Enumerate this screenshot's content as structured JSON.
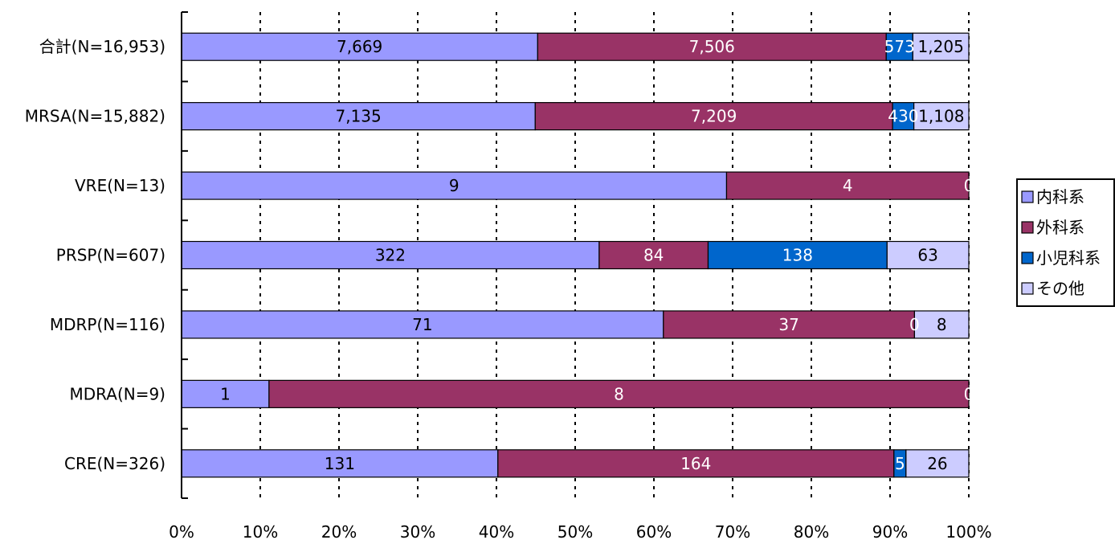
{
  "chart_data": {
    "type": "bar",
    "orientation": "horizontal",
    "stacking": "percent",
    "categories": [
      "合計(N=16,953)",
      "MRSA(N=15,882)",
      "VRE(N=13)",
      "PRSP(N=607)",
      "MDRP(N=116)",
      "MDRA(N=9)",
      "CRE(N=326)"
    ],
    "series": [
      {
        "name": "内科系",
        "values": [
          7669,
          7135,
          9,
          322,
          71,
          1,
          131
        ],
        "labels": [
          "7,669",
          "7,135",
          "9",
          "322",
          "71",
          "1",
          "131"
        ],
        "color": "#9999ff",
        "label_color": "#000000"
      },
      {
        "name": "外科系",
        "values": [
          7506,
          7209,
          4,
          84,
          37,
          8,
          164
        ],
        "labels": [
          "7,506",
          "7,209",
          "4",
          "84",
          "37",
          "8",
          "164"
        ],
        "color": "#993366",
        "label_color": "#ffffff"
      },
      {
        "name": "小児科系",
        "values": [
          573,
          430,
          0,
          138,
          0,
          0,
          5
        ],
        "labels": [
          "573",
          "430",
          "0",
          "138",
          "0",
          "0",
          "5"
        ],
        "color": "#0066cc",
        "label_color": "#ffffff"
      },
      {
        "name": "その他",
        "values": [
          1205,
          1108,
          0,
          63,
          8,
          0,
          26
        ],
        "labels": [
          "1,205",
          "1,108",
          "",
          "63",
          "8",
          "",
          "26"
        ],
        "color": "#ccccff",
        "label_color": "#000000"
      }
    ],
    "x_ticks": [
      "0%",
      "10%",
      "20%",
      "30%",
      "40%",
      "50%",
      "60%",
      "70%",
      "80%",
      "90%",
      "100%"
    ],
    "xlim": [
      0,
      100
    ],
    "grid": "vertical dotted",
    "legend_position": "right",
    "xlabel": "",
    "ylabel": "",
    "title": ""
  }
}
